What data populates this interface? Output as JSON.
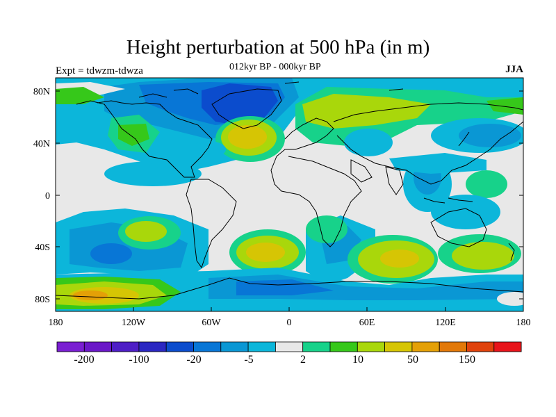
{
  "title": "Height perturbation at 500 hPa (in m)",
  "left_label": "Expt = tdwzm-tdwza",
  "center_label": "012kyr BP - 000kyr BP",
  "right_label": "JJA",
  "lat_ticks": [
    "80N",
    "40N",
    "0",
    "40S",
    "80S"
  ],
  "lon_ticks": [
    "180",
    "120W",
    "60W",
    "0",
    "60E",
    "120E",
    "180"
  ],
  "colorbar": {
    "colors": [
      "#7a1fd2",
      "#6a17c8",
      "#4e1ec6",
      "#2b27c2",
      "#0b4ccd",
      "#0876d6",
      "#0a97d4",
      "#0cb6da",
      "#e8e8e8",
      "#17d28a",
      "#36c81a",
      "#a9d70b",
      "#d6c504",
      "#e4a007",
      "#e27808",
      "#e0420c",
      "#e8141a"
    ],
    "labels": [
      "-200",
      "-100",
      "-20",
      "-5",
      "2",
      "10",
      "50",
      "150"
    ]
  },
  "fill_colors": {
    "land_bg": "#e8e8e8",
    "blue_light": "#0cb6da",
    "blue_mid": "#0a97d4",
    "blue_dark": "#0876d6",
    "blue_deep": "#0b4ccd",
    "teal": "#17d28a",
    "green": "#36c81a",
    "yellowgreen": "#a9d70b",
    "yellow": "#d6c504",
    "orange": "#e4a007"
  }
}
